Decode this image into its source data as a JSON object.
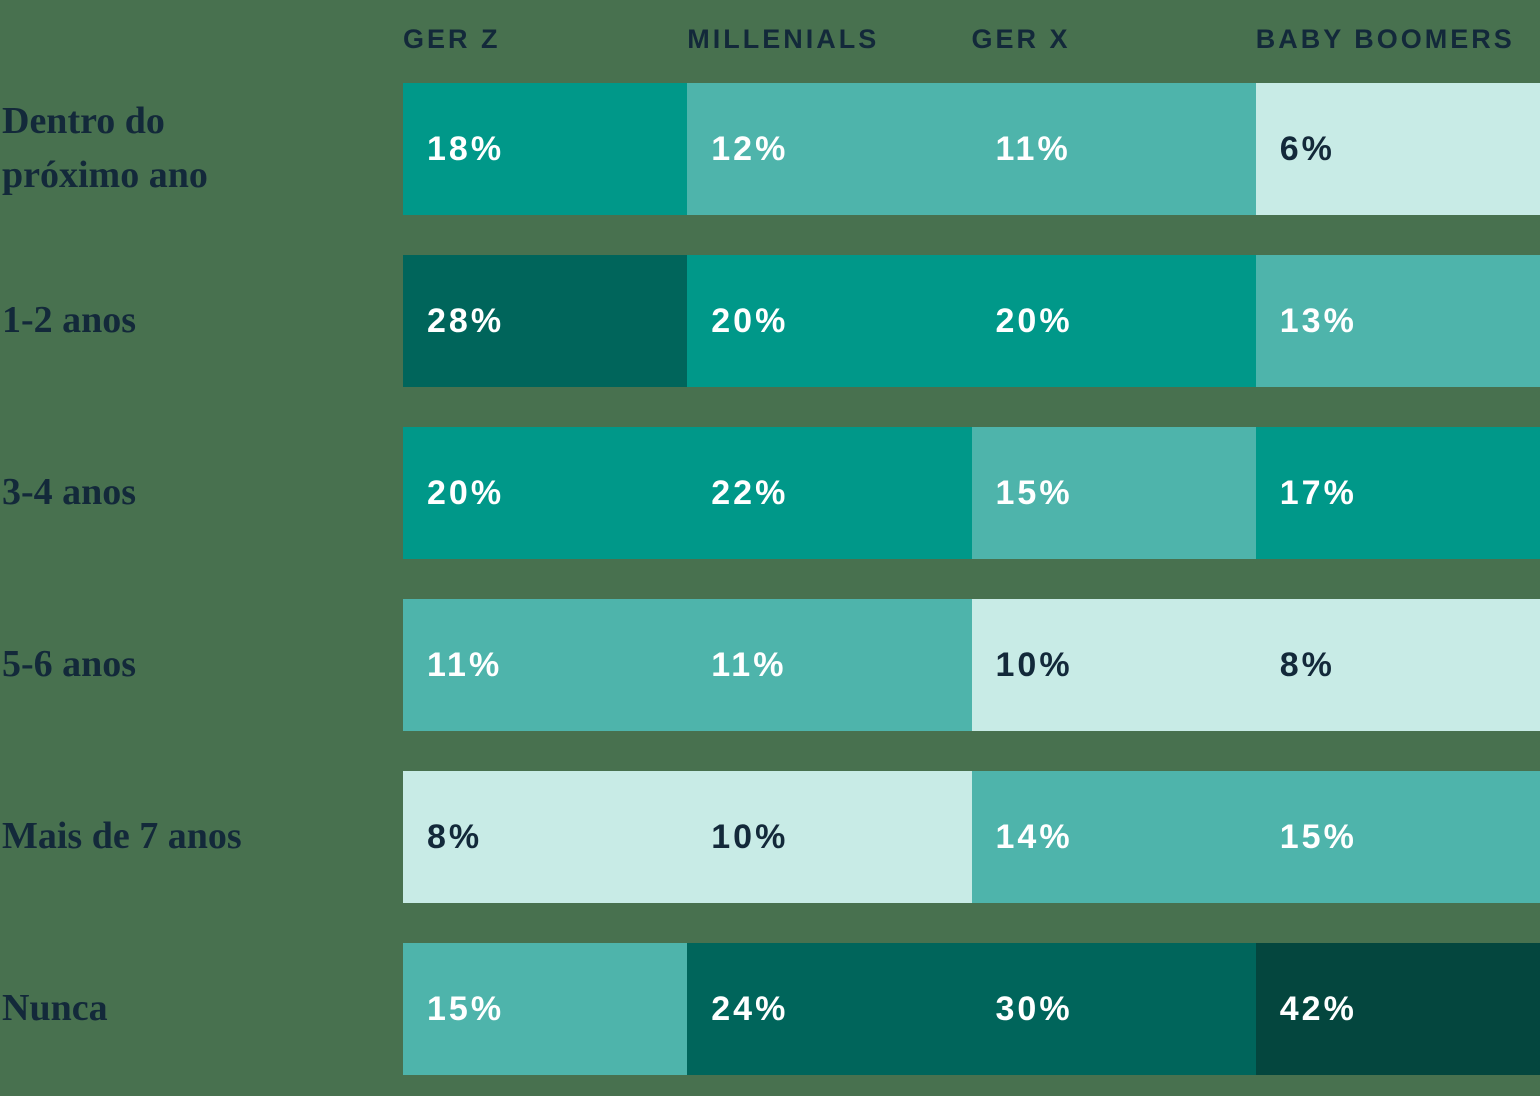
{
  "colors": {
    "background": "#48714F",
    "text_navy": "#13293A",
    "text_white": "#FFFFFF",
    "palette": {
      "t1": "#C8EBE6",
      "t2": "#4EB4AB",
      "t3": "#009889",
      "t4": "#00655B",
      "t5": "#04463E"
    }
  },
  "chart_data": {
    "type": "heatmap",
    "title": "",
    "value_suffix": "%",
    "legend": "none",
    "columns": [
      "GER Z",
      "MILLENIALS",
      "GER X",
      "BABY BOOMERS"
    ],
    "rows": [
      {
        "label": "Dentro do próximo ano",
        "label_lines": [
          "Dentro do",
          "próximo ano"
        ],
        "values": [
          18,
          12,
          11,
          6
        ],
        "tones": [
          "t3",
          "t2",
          "t2",
          "t1"
        ]
      },
      {
        "label": "1-2 anos",
        "label_lines": [
          "1-2 anos"
        ],
        "values": [
          28,
          20,
          20,
          13
        ],
        "tones": [
          "t4",
          "t3",
          "t3",
          "t2"
        ]
      },
      {
        "label": "3-4 anos",
        "label_lines": [
          "3-4 anos"
        ],
        "values": [
          20,
          22,
          15,
          17
        ],
        "tones": [
          "t3",
          "t3",
          "t2",
          "t3"
        ]
      },
      {
        "label": "5-6 anos",
        "label_lines": [
          "5-6 anos"
        ],
        "values": [
          11,
          11,
          10,
          8
        ],
        "tones": [
          "t2",
          "t2",
          "t1",
          "t1"
        ]
      },
      {
        "label": "Mais de 7 anos",
        "label_lines": [
          "Mais de 7 anos"
        ],
        "values": [
          8,
          10,
          14,
          15
        ],
        "tones": [
          "t1",
          "t1",
          "t2",
          "t2"
        ]
      },
      {
        "label": "Nunca",
        "label_lines": [
          "Nunca"
        ],
        "values": [
          15,
          24,
          30,
          42
        ],
        "tones": [
          "t2",
          "t4",
          "t4",
          "t5"
        ]
      }
    ]
  }
}
